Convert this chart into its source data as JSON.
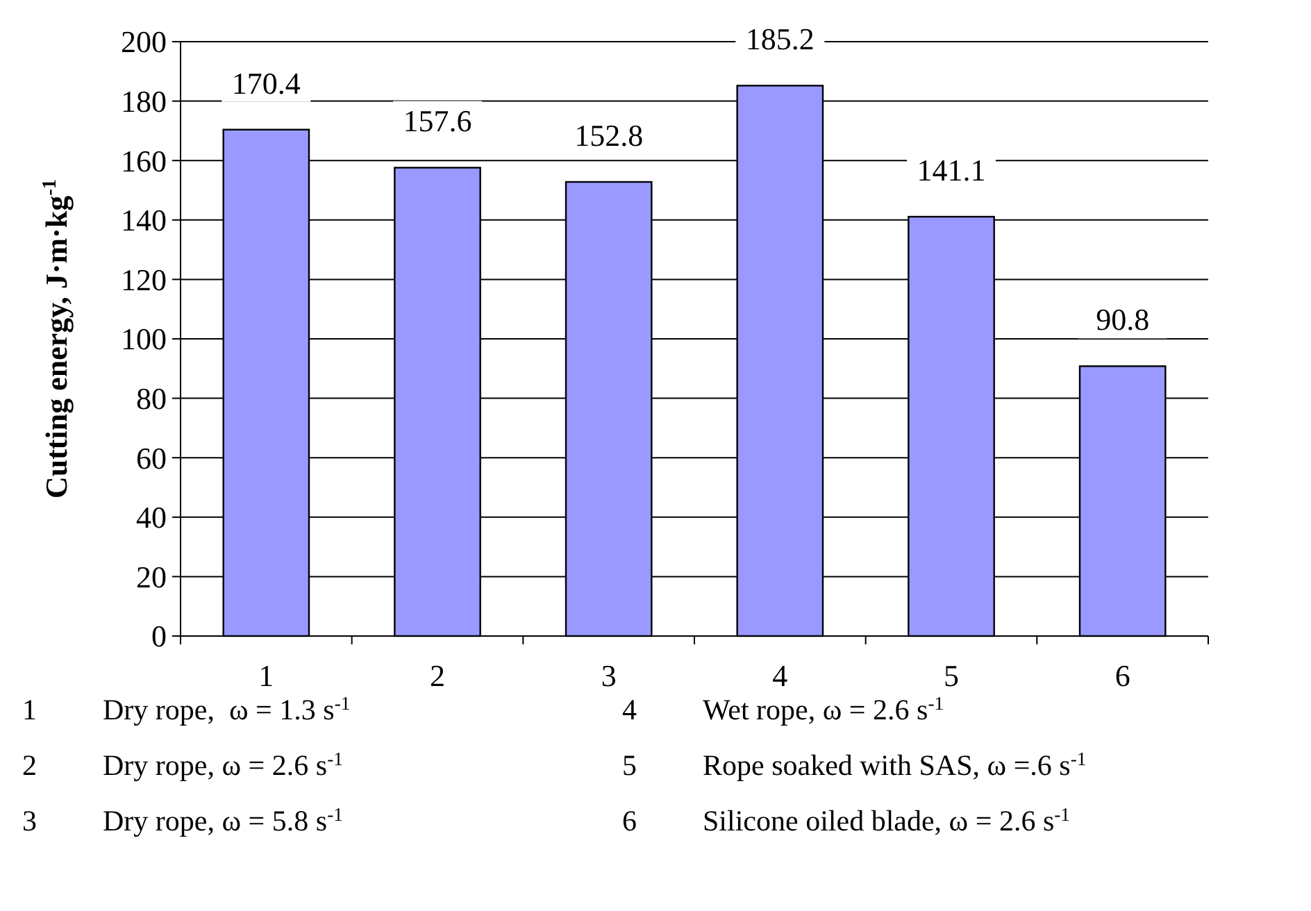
{
  "chart_data": {
    "type": "bar",
    "ylabel": "Cutting energy, J·m·kg$^{-1}$",
    "categories": [
      "1",
      "2",
      "3",
      "4",
      "5",
      "6"
    ],
    "values": [
      170.4,
      157.6,
      152.8,
      185.2,
      141.1,
      90.8
    ],
    "color": "#9999ff",
    "ylim": [
      0,
      200
    ],
    "yticks": [
      0,
      20,
      40,
      60,
      80,
      100,
      120,
      140,
      160,
      180,
      200
    ],
    "grid": "y",
    "data_labels": true,
    "annotations": [
      "1 Dry rope,  ω = 1.3 s$^{-1}$",
      "2 Dry rope, ω = 2.6 s$^{-1}$",
      "3 Dry rope, ω = 5.8 s$^{-1}$",
      "4 Wet rope, ω = 2.6 s$^{-1}$",
      "5 Rope soaked with SAS, ω =.6 s$^{-1}$",
      "6 Silicone oiled blade, ω = 2.6 s$^{-1}$"
    ]
  }
}
